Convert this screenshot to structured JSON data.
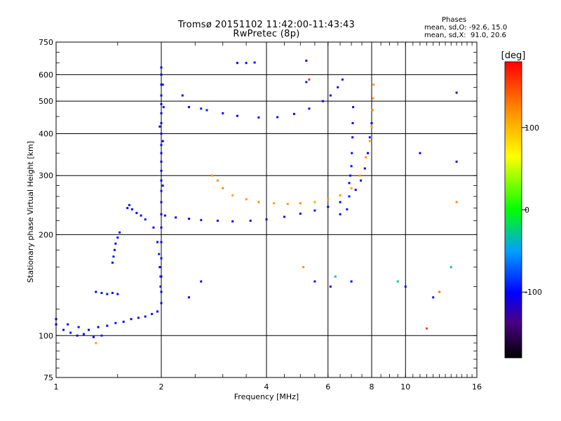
{
  "title": "Tromsø 20151102 11:42:00-11:43:43",
  "subtitle": "RwPretec (8p)",
  "phases": {
    "heading": "Phases",
    "line_o": "mean, sd,O: -92.6, 15.0",
    "line_x": "mean, sd,X:  91.0, 20.6"
  },
  "colorbar": {
    "unit": "[deg]",
    "ticks": [
      {
        "value": 100,
        "label": "100"
      },
      {
        "value": 0,
        "label": "0"
      },
      {
        "value": -100,
        "label": "-100"
      }
    ],
    "range": [
      -180,
      180
    ]
  },
  "chart_data": {
    "type": "scatter",
    "xlabel": "Frequency [MHz]",
    "ylabel": "Stationary phase Virtual Height [km]",
    "xscale": "log",
    "yscale": "log",
    "xlim": [
      1,
      16
    ],
    "ylim": [
      75,
      750
    ],
    "xticks": [
      {
        "value": 1,
        "label": "1"
      },
      {
        "value": 2,
        "label": "2"
      },
      {
        "value": 4,
        "label": "4"
      },
      {
        "value": 6,
        "label": "6"
      },
      {
        "value": 8,
        "label": "8"
      },
      {
        "value": 10,
        "label": "10"
      },
      {
        "value": 16,
        "label": "16"
      }
    ],
    "yticks": [
      {
        "value": 75,
        "label": "75"
      },
      {
        "value": 100,
        "label": "100"
      },
      {
        "value": 200,
        "label": "200"
      },
      {
        "value": 300,
        "label": "300"
      },
      {
        "value": 400,
        "label": "400"
      },
      {
        "value": 500,
        "label": "500"
      },
      {
        "value": 600,
        "label": "600"
      },
      {
        "value": 750,
        "label": "750"
      }
    ],
    "grid": true,
    "colormap": "rainbow",
    "points": [
      [
        1.0,
        108,
        -100
      ],
      [
        1.05,
        104,
        -105
      ],
      [
        1.1,
        102,
        -95
      ],
      [
        1.15,
        100,
        -110
      ],
      [
        1.2,
        101,
        -100
      ],
      [
        1.28,
        99,
        -105
      ],
      [
        1.35,
        100,
        -90
      ],
      [
        1.0,
        112,
        -100
      ],
      [
        1.08,
        108,
        -100
      ],
      [
        1.16,
        106,
        -95
      ],
      [
        1.24,
        104,
        -100
      ],
      [
        1.32,
        106,
        -105
      ],
      [
        1.4,
        107,
        -100
      ],
      [
        1.48,
        109,
        -95
      ],
      [
        1.56,
        110,
        -100
      ],
      [
        1.64,
        112,
        -100
      ],
      [
        1.72,
        113,
        -110
      ],
      [
        1.8,
        114,
        -100
      ],
      [
        1.88,
        116,
        -95
      ],
      [
        1.95,
        118,
        -100
      ],
      [
        1.3,
        135,
        -100
      ],
      [
        1.35,
        134,
        -95
      ],
      [
        1.4,
        133,
        -100
      ],
      [
        1.45,
        134,
        -105
      ],
      [
        1.5,
        133,
        -100
      ],
      [
        1.45,
        165,
        -100
      ],
      [
        1.46,
        172,
        -95
      ],
      [
        1.47,
        180,
        -100
      ],
      [
        1.48,
        188,
        -105
      ],
      [
        1.5,
        196,
        -100
      ],
      [
        1.52,
        203,
        -100
      ],
      [
        1.6,
        240,
        -100
      ],
      [
        1.62,
        245,
        -95
      ],
      [
        1.65,
        238,
        -105
      ],
      [
        1.7,
        232,
        -100
      ],
      [
        1.75,
        228,
        -100
      ],
      [
        1.8,
        222,
        -95
      ],
      [
        1.9,
        210,
        -100
      ],
      [
        1.95,
        190,
        -100
      ],
      [
        1.97,
        175,
        -95
      ],
      [
        1.98,
        160,
        -100
      ],
      [
        1.99,
        150,
        -105
      ],
      [
        1.99,
        140,
        -100
      ],
      [
        2.0,
        125,
        -100
      ],
      [
        2.0,
        135,
        -100
      ],
      [
        2.0,
        150,
        -105
      ],
      [
        2.0,
        170,
        -95
      ],
      [
        2.0,
        190,
        -100
      ],
      [
        2.0,
        210,
        -100
      ],
      [
        2.0,
        230,
        -105
      ],
      [
        2.0,
        250,
        -100
      ],
      [
        2.0,
        270,
        -95
      ],
      [
        2.0,
        290,
        -100
      ],
      [
        2.0,
        310,
        -100
      ],
      [
        2.0,
        330,
        -105
      ],
      [
        2.0,
        350,
        -100
      ],
      [
        2.0,
        370,
        -95
      ],
      [
        2.0,
        400,
        -100
      ],
      [
        2.0,
        430,
        -100
      ],
      [
        2.0,
        460,
        -105
      ],
      [
        2.0,
        490,
        -100
      ],
      [
        2.0,
        520,
        -95
      ],
      [
        2.0,
        560,
        -100
      ],
      [
        2.0,
        600,
        -105
      ],
      [
        2.0,
        630,
        -100
      ],
      [
        2.02,
        380,
        -100
      ],
      [
        2.02,
        280,
        -95
      ],
      [
        2.03,
        480,
        -100
      ],
      [
        1.98,
        420,
        -100
      ],
      [
        2.02,
        560,
        -105
      ],
      [
        2.05,
        228,
        -100
      ],
      [
        2.2,
        225,
        -105
      ],
      [
        2.4,
        223,
        -100
      ],
      [
        2.6,
        221,
        -95
      ],
      [
        2.9,
        220,
        -100
      ],
      [
        3.2,
        219,
        -100
      ],
      [
        3.6,
        220,
        -105
      ],
      [
        4.0,
        222,
        -100
      ],
      [
        4.5,
        226,
        -95
      ],
      [
        5.0,
        231,
        -100
      ],
      [
        5.5,
        236,
        -100
      ],
      [
        6.0,
        242,
        -105
      ],
      [
        6.5,
        250,
        -100
      ],
      [
        6.9,
        260,
        -95
      ],
      [
        7.2,
        272,
        -100
      ],
      [
        7.45,
        290,
        -100
      ],
      [
        7.65,
        315,
        -105
      ],
      [
        7.8,
        350,
        -100
      ],
      [
        7.9,
        390,
        -95
      ],
      [
        8.0,
        430,
        -100
      ],
      [
        6.9,
        285,
        -100
      ],
      [
        6.95,
        300,
        -105
      ],
      [
        7.0,
        320,
        -100
      ],
      [
        7.02,
        350,
        -95
      ],
      [
        7.05,
        390,
        -100
      ],
      [
        7.06,
        430,
        -100
      ],
      [
        7.08,
        480,
        -105
      ],
      [
        6.5,
        230,
        -100
      ],
      [
        6.8,
        238,
        -95
      ],
      [
        3.0,
        275,
        120
      ],
      [
        3.2,
        262,
        110
      ],
      [
        3.5,
        255,
        115
      ],
      [
        3.8,
        250,
        120
      ],
      [
        4.2,
        248,
        110
      ],
      [
        4.6,
        247,
        115
      ],
      [
        5.0,
        248,
        120
      ],
      [
        5.5,
        250,
        110
      ],
      [
        6.0,
        255,
        115
      ],
      [
        6.5,
        262,
        120
      ],
      [
        7.0,
        275,
        110
      ],
      [
        7.4,
        300,
        115
      ],
      [
        7.7,
        340,
        120
      ],
      [
        7.9,
        380,
        110
      ],
      [
        8.0,
        420,
        115
      ],
      [
        8.05,
        470,
        120
      ],
      [
        8.08,
        510,
        110
      ],
      [
        8.1,
        560,
        115
      ],
      [
        2.8,
        300,
        115
      ],
      [
        2.9,
        290,
        120
      ],
      [
        2.4,
        480,
        -100
      ],
      [
        2.7,
        470,
        -95
      ],
      [
        3.0,
        460,
        -100
      ],
      [
        3.3,
        452,
        -105
      ],
      [
        3.8,
        447,
        -100
      ],
      [
        4.3,
        448,
        -95
      ],
      [
        4.8,
        458,
        -100
      ],
      [
        5.3,
        475,
        -100
      ],
      [
        5.8,
        500,
        -105
      ],
      [
        6.1,
        520,
        -100
      ],
      [
        6.4,
        550,
        -95
      ],
      [
        6.6,
        580,
        -100
      ],
      [
        2.3,
        520,
        -100
      ],
      [
        2.6,
        475,
        -95
      ],
      [
        3.3,
        650,
        -100
      ],
      [
        3.5,
        650,
        -105
      ],
      [
        3.7,
        652,
        -100
      ],
      [
        5.2,
        660,
        -100
      ],
      [
        5.2,
        570,
        -95
      ],
      [
        11.0,
        350,
        -100
      ],
      [
        14.0,
        330,
        -100
      ],
      [
        14.0,
        530,
        -105
      ],
      [
        5.1,
        160,
        120
      ],
      [
        5.5,
        145,
        -100
      ],
      [
        6.1,
        140,
        -100
      ],
      [
        6.3,
        150,
        -30
      ],
      [
        7.0,
        145,
        -100
      ],
      [
        9.5,
        145,
        -30
      ],
      [
        10.0,
        140,
        -100
      ],
      [
        12.0,
        130,
        -100
      ],
      [
        11.5,
        105,
        150
      ],
      [
        13.5,
        160,
        -30
      ],
      [
        12.5,
        135,
        130
      ],
      [
        14.0,
        250,
        120
      ],
      [
        1.3,
        95,
        110
      ],
      [
        2.4,
        130,
        -100
      ],
      [
        2.6,
        145,
        -100
      ],
      [
        5.3,
        580,
        160
      ]
    ]
  }
}
